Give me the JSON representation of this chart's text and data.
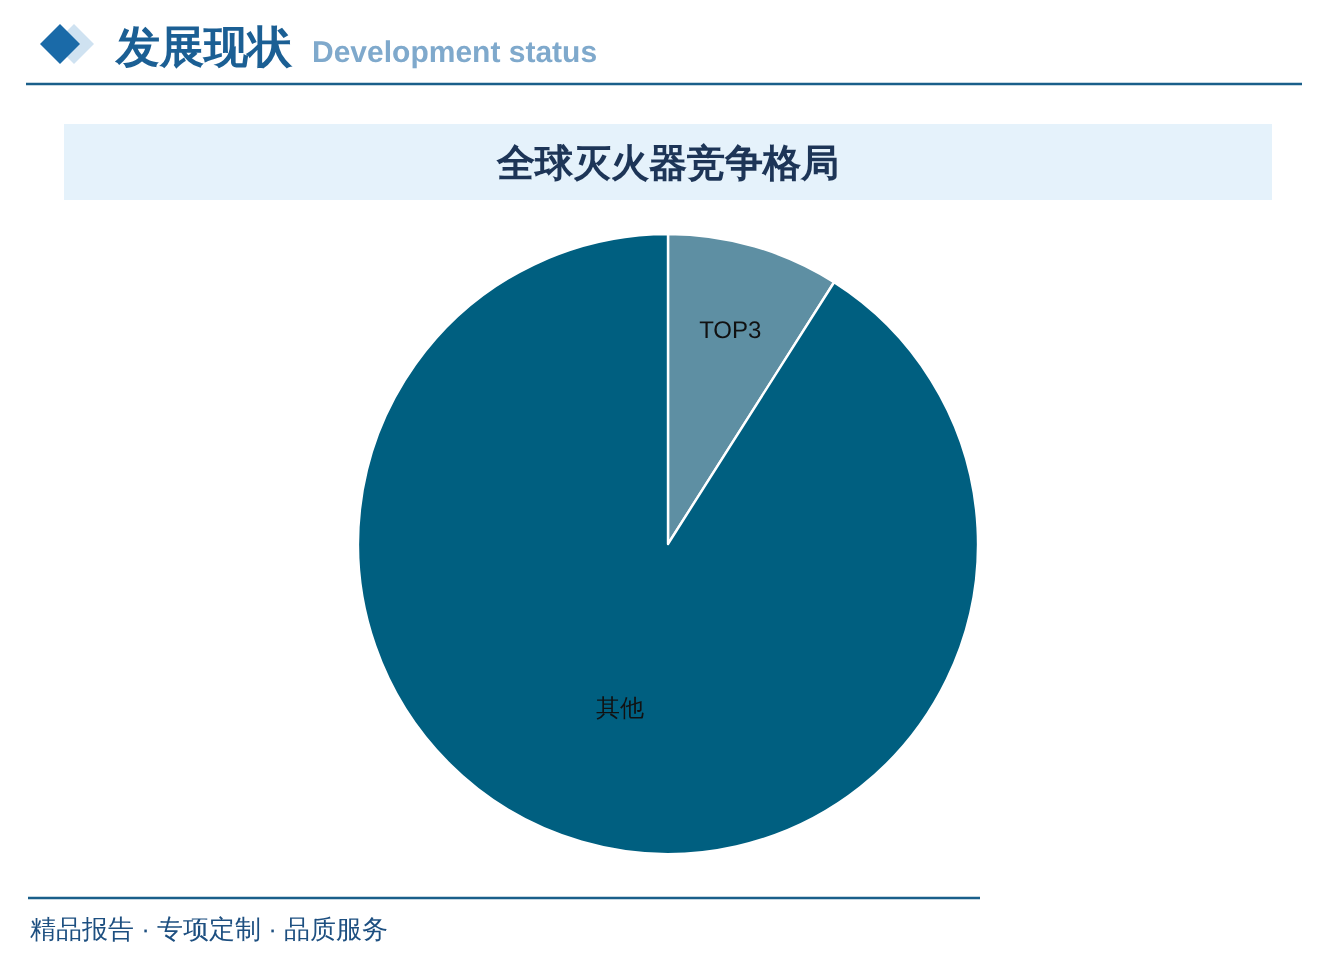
{
  "chart_data": {
    "type": "pie",
    "title": "全球灭火器竞争格局",
    "categories": [
      "TOP3",
      "其他"
    ],
    "values": [
      9,
      91
    ],
    "colors": [
      "#5e8fa3",
      "#005f80"
    ],
    "annotations": [
      "发展现状",
      "Development status",
      "精品报告 · 专项定制 · 品质服务"
    ]
  }
}
